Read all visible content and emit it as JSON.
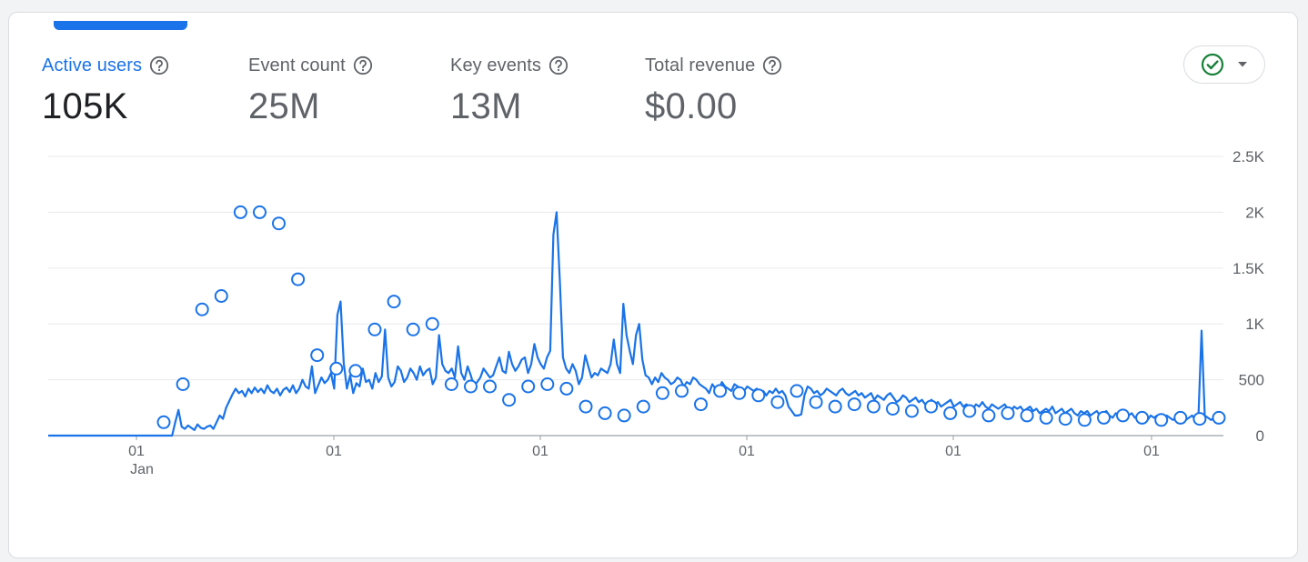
{
  "metrics": [
    {
      "label": "Active users",
      "value": "105K"
    },
    {
      "label": "Event count",
      "value": "25M"
    },
    {
      "label": "Key events",
      "value": "13M"
    },
    {
      "label": "Total revenue",
      "value": "$0.00"
    }
  ],
  "compare_button": {
    "icon": "check-circle-icon",
    "dropdown_icon": "caret-down-icon"
  },
  "colors": {
    "accent": "#1a73e8",
    "text": "#202124",
    "muted": "#5f6368",
    "grid": "#e8eaed",
    "check": "#188038"
  },
  "chart_data": {
    "type": "line",
    "y_ticks": [
      "2.5K",
      "2K",
      "1.5K",
      "1K",
      "500",
      "0"
    ],
    "y_tick_values": [
      2500,
      2000,
      1500,
      1000,
      500,
      0
    ],
    "ylim": [
      0,
      2500
    ],
    "x_ticks": [
      {
        "label": "01",
        "sub": "Jan"
      },
      {
        "label": "01",
        "sub": ""
      },
      {
        "label": "01",
        "sub": ""
      },
      {
        "label": "01",
        "sub": ""
      },
      {
        "label": "01",
        "sub": ""
      },
      {
        "label": "01",
        "sub": ""
      }
    ],
    "grid": true,
    "series": [
      {
        "values": [
          0,
          0,
          0,
          0,
          0,
          0,
          0,
          0,
          0,
          0,
          0,
          0,
          0,
          0,
          0,
          0,
          0,
          0,
          0,
          0,
          0,
          0,
          0,
          0,
          0,
          0,
          0,
          0,
          0,
          0,
          0,
          0,
          0,
          0,
          0,
          0,
          0,
          0,
          0,
          0,
          120,
          230,
          80,
          60,
          90,
          70,
          50,
          100,
          70,
          60,
          80,
          90,
          60,
          120,
          180,
          150,
          250,
          310,
          370,
          420,
          380,
          400,
          350,
          420,
          380,
          430,
          390,
          420,
          380,
          450,
          400,
          380,
          420,
          360,
          410,
          430,
          390,
          450,
          380,
          420,
          500,
          440,
          420,
          620,
          380,
          450,
          520,
          470,
          500,
          560,
          420,
          1080,
          1200,
          650,
          420,
          540,
          380,
          470,
          440,
          600,
          480,
          500,
          420,
          560,
          480,
          530,
          950,
          520,
          440,
          480,
          620,
          580,
          480,
          520,
          600,
          560,
          500,
          620,
          540,
          580,
          600,
          460,
          520,
          900,
          640,
          580,
          560,
          600,
          520,
          800,
          560,
          500,
          620,
          540,
          440,
          480,
          520,
          600,
          560,
          520,
          540,
          620,
          700,
          580,
          560,
          750,
          640,
          580,
          620,
          680,
          700,
          560,
          640,
          820,
          700,
          640,
          600,
          700,
          760,
          1800,
          2000,
          1400,
          700,
          600,
          560,
          640,
          580,
          460,
          520,
          720,
          620,
          520,
          560,
          540,
          600,
          580,
          560,
          640,
          860,
          640,
          560,
          1180,
          900,
          760,
          640,
          900,
          1000,
          680,
          540,
          520,
          460,
          520,
          480,
          560,
          520,
          500,
          460,
          480,
          520,
          500,
          440,
          480,
          460,
          520,
          500,
          460,
          440,
          420,
          380,
          460,
          420,
          400,
          480,
          440,
          420,
          400,
          460,
          440,
          420,
          400,
          440,
          420,
          400,
          420,
          380,
          400,
          360,
          400,
          380,
          420,
          380,
          400,
          360,
          260,
          220,
          180,
          180,
          190,
          360,
          440,
          420,
          380,
          400,
          360,
          380,
          420,
          400,
          380,
          360,
          400,
          420,
          380,
          360,
          380,
          400,
          360,
          380,
          340,
          360,
          380,
          320,
          360,
          340,
          320,
          360,
          380,
          340,
          300,
          320,
          360,
          340,
          300,
          320,
          340,
          300,
          320,
          280,
          300,
          320,
          280,
          300,
          260,
          280,
          300,
          320,
          260,
          280,
          300,
          260,
          280,
          260,
          240,
          280,
          260,
          300,
          260,
          240,
          280,
          260,
          240,
          260,
          280,
          240,
          220,
          260,
          240,
          260,
          220,
          240,
          260,
          220,
          240,
          200,
          220,
          240,
          220,
          260,
          200,
          220,
          240,
          200,
          220,
          240,
          200,
          180,
          220,
          200,
          220,
          180,
          200,
          220,
          180,
          200,
          220,
          180,
          160,
          200,
          180,
          200,
          160,
          180,
          200,
          160,
          180,
          200,
          160,
          140,
          180,
          160,
          180,
          160,
          140,
          180,
          160,
          140,
          160,
          180,
          160,
          140,
          160,
          180,
          140,
          160,
          940,
          180,
          160,
          140,
          160,
          150,
          160
        ],
        "markers": [
          120,
          460,
          1130,
          1250,
          2000,
          2000,
          1900,
          1400,
          720,
          600,
          580,
          950,
          1200,
          950,
          1000,
          460,
          440,
          440,
          320,
          440,
          460,
          420,
          260,
          200,
          180,
          260,
          380,
          400,
          280,
          400,
          380,
          360,
          300,
          400,
          300,
          260,
          280,
          260,
          240,
          220,
          260,
          200,
          220,
          180,
          200,
          180,
          160,
          150,
          140,
          160,
          180,
          160,
          140,
          160,
          150,
          160
        ]
      }
    ]
  }
}
